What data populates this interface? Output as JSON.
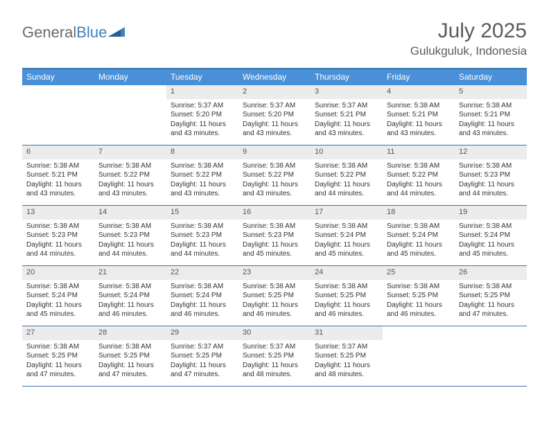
{
  "brand": {
    "text1": "General",
    "text2": "Blue"
  },
  "title": "July 2025",
  "location": "Gulukguluk, Indonesia",
  "colors": {
    "header_bg": "#4a90d9",
    "header_border": "#3b76aa",
    "daynum_bg": "#ececec",
    "text": "#333333",
    "brand_gray": "#6b6b6b",
    "brand_blue": "#3b82c4"
  },
  "weekdays": [
    "Sunday",
    "Monday",
    "Tuesday",
    "Wednesday",
    "Thursday",
    "Friday",
    "Saturday"
  ],
  "weeks": [
    [
      null,
      null,
      {
        "n": "1",
        "sunrise": "5:37 AM",
        "sunset": "5:20 PM",
        "daylight": "11 hours and 43 minutes."
      },
      {
        "n": "2",
        "sunrise": "5:37 AM",
        "sunset": "5:20 PM",
        "daylight": "11 hours and 43 minutes."
      },
      {
        "n": "3",
        "sunrise": "5:37 AM",
        "sunset": "5:21 PM",
        "daylight": "11 hours and 43 minutes."
      },
      {
        "n": "4",
        "sunrise": "5:38 AM",
        "sunset": "5:21 PM",
        "daylight": "11 hours and 43 minutes."
      },
      {
        "n": "5",
        "sunrise": "5:38 AM",
        "sunset": "5:21 PM",
        "daylight": "11 hours and 43 minutes."
      }
    ],
    [
      {
        "n": "6",
        "sunrise": "5:38 AM",
        "sunset": "5:21 PM",
        "daylight": "11 hours and 43 minutes."
      },
      {
        "n": "7",
        "sunrise": "5:38 AM",
        "sunset": "5:22 PM",
        "daylight": "11 hours and 43 minutes."
      },
      {
        "n": "8",
        "sunrise": "5:38 AM",
        "sunset": "5:22 PM",
        "daylight": "11 hours and 43 minutes."
      },
      {
        "n": "9",
        "sunrise": "5:38 AM",
        "sunset": "5:22 PM",
        "daylight": "11 hours and 43 minutes."
      },
      {
        "n": "10",
        "sunrise": "5:38 AM",
        "sunset": "5:22 PM",
        "daylight": "11 hours and 44 minutes."
      },
      {
        "n": "11",
        "sunrise": "5:38 AM",
        "sunset": "5:22 PM",
        "daylight": "11 hours and 44 minutes."
      },
      {
        "n": "12",
        "sunrise": "5:38 AM",
        "sunset": "5:23 PM",
        "daylight": "11 hours and 44 minutes."
      }
    ],
    [
      {
        "n": "13",
        "sunrise": "5:38 AM",
        "sunset": "5:23 PM",
        "daylight": "11 hours and 44 minutes."
      },
      {
        "n": "14",
        "sunrise": "5:38 AM",
        "sunset": "5:23 PM",
        "daylight": "11 hours and 44 minutes."
      },
      {
        "n": "15",
        "sunrise": "5:38 AM",
        "sunset": "5:23 PM",
        "daylight": "11 hours and 44 minutes."
      },
      {
        "n": "16",
        "sunrise": "5:38 AM",
        "sunset": "5:23 PM",
        "daylight": "11 hours and 45 minutes."
      },
      {
        "n": "17",
        "sunrise": "5:38 AM",
        "sunset": "5:24 PM",
        "daylight": "11 hours and 45 minutes."
      },
      {
        "n": "18",
        "sunrise": "5:38 AM",
        "sunset": "5:24 PM",
        "daylight": "11 hours and 45 minutes."
      },
      {
        "n": "19",
        "sunrise": "5:38 AM",
        "sunset": "5:24 PM",
        "daylight": "11 hours and 45 minutes."
      }
    ],
    [
      {
        "n": "20",
        "sunrise": "5:38 AM",
        "sunset": "5:24 PM",
        "daylight": "11 hours and 45 minutes."
      },
      {
        "n": "21",
        "sunrise": "5:38 AM",
        "sunset": "5:24 PM",
        "daylight": "11 hours and 46 minutes."
      },
      {
        "n": "22",
        "sunrise": "5:38 AM",
        "sunset": "5:24 PM",
        "daylight": "11 hours and 46 minutes."
      },
      {
        "n": "23",
        "sunrise": "5:38 AM",
        "sunset": "5:25 PM",
        "daylight": "11 hours and 46 minutes."
      },
      {
        "n": "24",
        "sunrise": "5:38 AM",
        "sunset": "5:25 PM",
        "daylight": "11 hours and 46 minutes."
      },
      {
        "n": "25",
        "sunrise": "5:38 AM",
        "sunset": "5:25 PM",
        "daylight": "11 hours and 46 minutes."
      },
      {
        "n": "26",
        "sunrise": "5:38 AM",
        "sunset": "5:25 PM",
        "daylight": "11 hours and 47 minutes."
      }
    ],
    [
      {
        "n": "27",
        "sunrise": "5:38 AM",
        "sunset": "5:25 PM",
        "daylight": "11 hours and 47 minutes."
      },
      {
        "n": "28",
        "sunrise": "5:38 AM",
        "sunset": "5:25 PM",
        "daylight": "11 hours and 47 minutes."
      },
      {
        "n": "29",
        "sunrise": "5:37 AM",
        "sunset": "5:25 PM",
        "daylight": "11 hours and 47 minutes."
      },
      {
        "n": "30",
        "sunrise": "5:37 AM",
        "sunset": "5:25 PM",
        "daylight": "11 hours and 48 minutes."
      },
      {
        "n": "31",
        "sunrise": "5:37 AM",
        "sunset": "5:25 PM",
        "daylight": "11 hours and 48 minutes."
      },
      null,
      null
    ]
  ],
  "labels": {
    "sunrise_prefix": "Sunrise: ",
    "sunset_prefix": "Sunset: ",
    "daylight_prefix": "Daylight: "
  }
}
